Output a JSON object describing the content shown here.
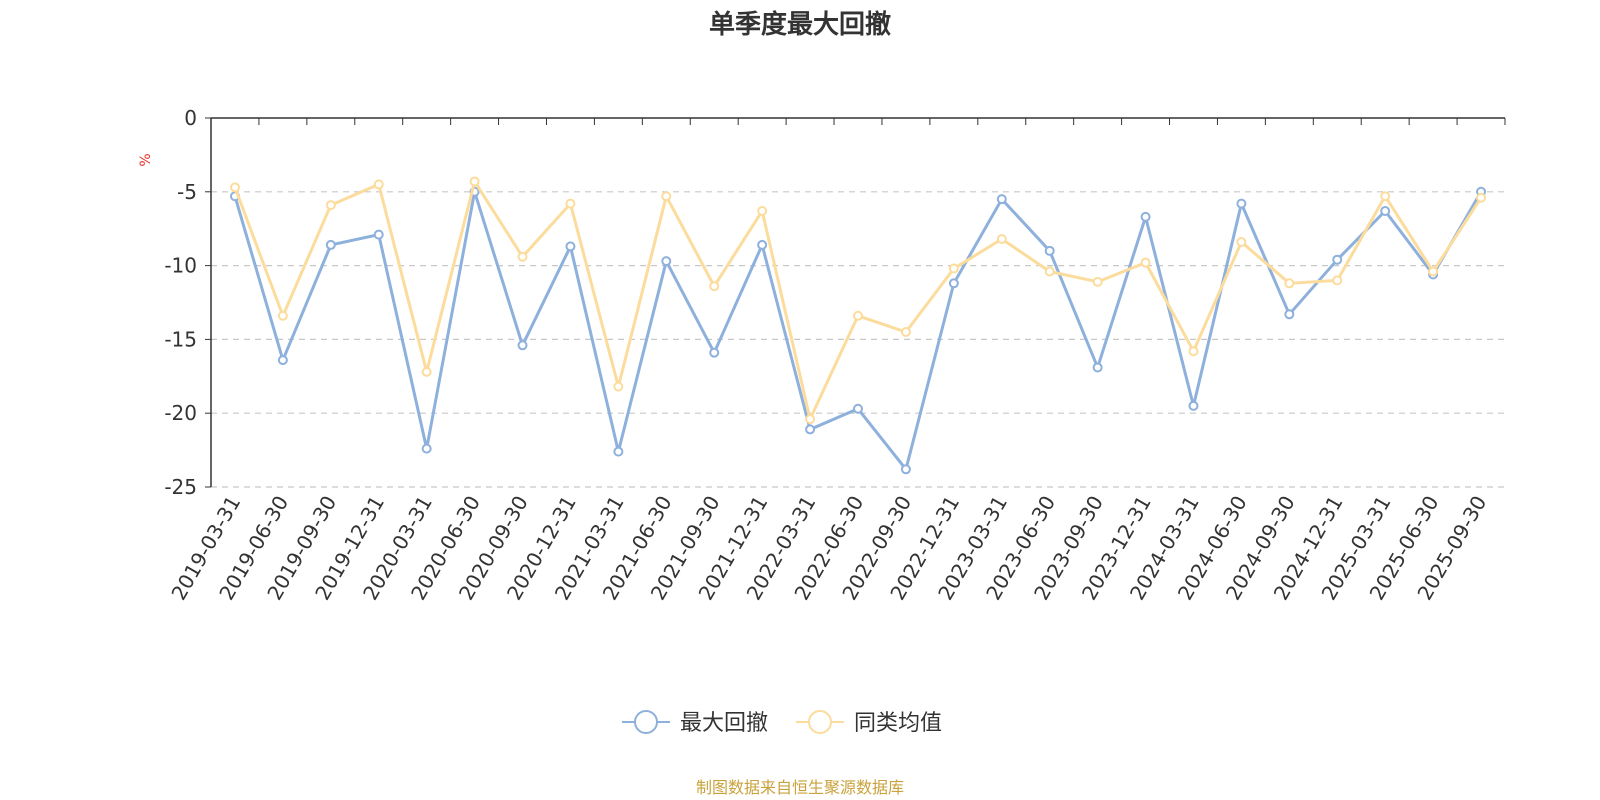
{
  "chart_data": {
    "type": "line",
    "title": "单季度最大回撤",
    "ylabel": "%",
    "xlabel": "",
    "ylim": [
      -25,
      0
    ],
    "yticks": [
      0,
      -5,
      -10,
      -15,
      -20,
      -25
    ],
    "grid": true,
    "legend_position": "bottom-center",
    "categories": [
      "2019-03-31",
      "2019-06-30",
      "2019-09-30",
      "2019-12-31",
      "2020-03-31",
      "2020-06-30",
      "2020-09-30",
      "2020-12-31",
      "2021-03-31",
      "2021-06-30",
      "2021-09-30",
      "2021-12-31",
      "2022-03-31",
      "2022-06-30",
      "2022-09-30",
      "2022-12-31",
      "2023-03-31",
      "2023-06-30",
      "2023-09-30",
      "2023-12-31",
      "2024-03-31",
      "2024-06-30",
      "2024-09-30",
      "2024-12-31",
      "2025-03-31",
      "2025-06-30",
      "2025-09-30"
    ],
    "series": [
      {
        "name": "最大回撤",
        "color": "#8eb0dc",
        "values": [
          -5.3,
          -16.4,
          -8.6,
          -7.9,
          -22.4,
          -5.0,
          -15.4,
          -8.7,
          -22.6,
          -9.7,
          -15.9,
          -8.6,
          -21.1,
          -19.7,
          -23.8,
          -11.2,
          -5.5,
          -9.0,
          -16.9,
          -6.7,
          -19.5,
          -5.8,
          -13.3,
          -9.6,
          -6.3,
          -10.6,
          -5.0
        ]
      },
      {
        "name": "同类均值",
        "color": "#fcdc9c",
        "values": [
          -4.7,
          -13.4,
          -5.9,
          -4.5,
          -17.2,
          -4.3,
          -9.4,
          -5.8,
          -18.2,
          -5.3,
          -11.4,
          -6.3,
          -20.4,
          -13.4,
          -14.5,
          -10.2,
          -8.2,
          -10.4,
          -11.1,
          -9.8,
          -15.8,
          -8.4,
          -11.2,
          -11.0,
          -5.3,
          -10.4,
          -5.4
        ]
      }
    ]
  },
  "footer": {
    "source_note": "制图数据来自恒生聚源数据库"
  },
  "colors": {
    "axis": "#333333",
    "grid": "#c8c8c8",
    "unit_label": "#e8332b",
    "footer": "#c9a23b"
  }
}
